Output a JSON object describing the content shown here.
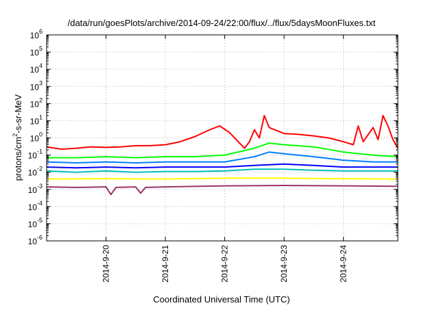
{
  "chart_data": {
    "type": "line",
    "title": "/data/run/goesPlots/archive/2014-09-24/22:00/flux/../flux/5daysMoonFluxes.txt",
    "xlabel": "Coordinated Universal Time (UTC)",
    "ylabel": {
      "prefix": "protons/cm",
      "superscript": "2",
      "suffix": "-s-sr-MeV"
    },
    "y_scale": "log",
    "ylim": [
      1e-06,
      1000000
    ],
    "yticks": [
      {
        "base": "10",
        "exp": "-6"
      },
      {
        "base": "10",
        "exp": "-5"
      },
      {
        "base": "10",
        "exp": "-4"
      },
      {
        "base": "10",
        "exp": "-3"
      },
      {
        "base": "10",
        "exp": "-2"
      },
      {
        "base": "10",
        "exp": "-1"
      },
      {
        "base": "10",
        "exp": "0"
      },
      {
        "base": "10",
        "exp": "1"
      },
      {
        "base": "10",
        "exp": "2"
      },
      {
        "base": "10",
        "exp": "3"
      },
      {
        "base": "10",
        "exp": "4"
      },
      {
        "base": "10",
        "exp": "5"
      },
      {
        "base": "10",
        "exp": "6"
      }
    ],
    "xlim": [
      "2014-09-19 00:00",
      "2014-09-24 22:00"
    ],
    "xticks": [
      "2014-9-20",
      "2014-9-21",
      "2014-9-22",
      "2014-9-23",
      "2014-9-24"
    ],
    "grid": true,
    "series": [
      {
        "color": "#ff0000",
        "points": [
          [
            "2014-09-19 00:00",
            0.3
          ],
          [
            "2014-09-19 06:00",
            0.22
          ],
          [
            "2014-09-19 12:00",
            0.25
          ],
          [
            "2014-09-19 18:00",
            0.3
          ],
          [
            "2014-09-20 00:00",
            0.28
          ],
          [
            "2014-09-20 06:00",
            0.3
          ],
          [
            "2014-09-20 12:00",
            0.35
          ],
          [
            "2014-09-20 18:00",
            0.35
          ],
          [
            "2014-09-21 00:00",
            0.4
          ],
          [
            "2014-09-21 06:00",
            0.6
          ],
          [
            "2014-09-21 12:00",
            1.2
          ],
          [
            "2014-09-21 18:00",
            3.0
          ],
          [
            "2014-09-21 22:00",
            5.0
          ],
          [
            "2014-09-22 02:00",
            2.0
          ],
          [
            "2014-09-22 06:00",
            0.5
          ],
          [
            "2014-09-22 08:00",
            0.25
          ],
          [
            "2014-09-22 10:00",
            0.6
          ],
          [
            "2014-09-22 12:00",
            3.0
          ],
          [
            "2014-09-22 14:00",
            1.0
          ],
          [
            "2014-09-22 16:00",
            20.0
          ],
          [
            "2014-09-22 18:00",
            4.0
          ],
          [
            "2014-09-23 00:00",
            1.8
          ],
          [
            "2014-09-23 06:00",
            1.6
          ],
          [
            "2014-09-23 12:00",
            1.3
          ],
          [
            "2014-09-23 18:00",
            1.0
          ],
          [
            "2014-09-24 00:00",
            0.6
          ],
          [
            "2014-09-24 04:00",
            0.4
          ],
          [
            "2014-09-24 06:00",
            5.0
          ],
          [
            "2014-09-24 08:00",
            0.6
          ],
          [
            "2014-09-24 12:00",
            4.0
          ],
          [
            "2014-09-24 14:00",
            0.8
          ],
          [
            "2014-09-24 16:00",
            20.0
          ],
          [
            "2014-09-24 18:00",
            5.0
          ],
          [
            "2014-09-24 20:00",
            0.8
          ],
          [
            "2014-09-24 22:00",
            0.25
          ]
        ]
      },
      {
        "color": "#00ff00",
        "points": [
          [
            "2014-09-19 00:00",
            0.07
          ],
          [
            "2014-09-19 12:00",
            0.07
          ],
          [
            "2014-09-20 00:00",
            0.08
          ],
          [
            "2014-09-20 12:00",
            0.07
          ],
          [
            "2014-09-21 00:00",
            0.08
          ],
          [
            "2014-09-21 12:00",
            0.08
          ],
          [
            "2014-09-22 00:00",
            0.1
          ],
          [
            "2014-09-22 12:00",
            0.25
          ],
          [
            "2014-09-22 18:00",
            0.5
          ],
          [
            "2014-09-23 00:00",
            0.4
          ],
          [
            "2014-09-23 12:00",
            0.3
          ],
          [
            "2014-09-24 00:00",
            0.15
          ],
          [
            "2014-09-24 12:00",
            0.1
          ],
          [
            "2014-09-24 22:00",
            0.08
          ]
        ]
      },
      {
        "color": "#0080ff",
        "points": [
          [
            "2014-09-19 00:00",
            0.04
          ],
          [
            "2014-09-19 12:00",
            0.035
          ],
          [
            "2014-09-20 00:00",
            0.04
          ],
          [
            "2014-09-20 12:00",
            0.035
          ],
          [
            "2014-09-21 00:00",
            0.04
          ],
          [
            "2014-09-21 12:00",
            0.04
          ],
          [
            "2014-09-22 00:00",
            0.04
          ],
          [
            "2014-09-22 12:00",
            0.08
          ],
          [
            "2014-09-22 18:00",
            0.15
          ],
          [
            "2014-09-23 00:00",
            0.12
          ],
          [
            "2014-09-23 12:00",
            0.08
          ],
          [
            "2014-09-24 00:00",
            0.05
          ],
          [
            "2014-09-24 12:00",
            0.04
          ],
          [
            "2014-09-24 22:00",
            0.04
          ]
        ]
      },
      {
        "color": "#0000ff",
        "points": [
          [
            "2014-09-19 00:00",
            0.02
          ],
          [
            "2014-09-19 12:00",
            0.018
          ],
          [
            "2014-09-20 00:00",
            0.02
          ],
          [
            "2014-09-20 12:00",
            0.018
          ],
          [
            "2014-09-21 00:00",
            0.02
          ],
          [
            "2014-09-21 12:00",
            0.02
          ],
          [
            "2014-09-22 00:00",
            0.02
          ],
          [
            "2014-09-22 12:00",
            0.025
          ],
          [
            "2014-09-23 00:00",
            0.03
          ],
          [
            "2014-09-23 12:00",
            0.025
          ],
          [
            "2014-09-24 00:00",
            0.02
          ],
          [
            "2014-09-24 12:00",
            0.02
          ],
          [
            "2014-09-24 22:00",
            0.02
          ]
        ]
      },
      {
        "color": "#00c0c0",
        "points": [
          [
            "2014-09-19 00:00",
            0.012
          ],
          [
            "2014-09-19 12:00",
            0.01
          ],
          [
            "2014-09-20 00:00",
            0.012
          ],
          [
            "2014-09-20 12:00",
            0.01
          ],
          [
            "2014-09-21 00:00",
            0.011
          ],
          [
            "2014-09-21 12:00",
            0.011
          ],
          [
            "2014-09-22 00:00",
            0.012
          ],
          [
            "2014-09-22 12:00",
            0.015
          ],
          [
            "2014-09-23 00:00",
            0.015
          ],
          [
            "2014-09-23 12:00",
            0.013
          ],
          [
            "2014-09-24 00:00",
            0.012
          ],
          [
            "2014-09-24 12:00",
            0.012
          ],
          [
            "2014-09-24 22:00",
            0.012
          ]
        ]
      },
      {
        "color": "#ffff00",
        "points": [
          [
            "2014-09-19 00:00",
            0.004
          ],
          [
            "2014-09-20 00:00",
            0.0042
          ],
          [
            "2014-09-21 00:00",
            0.004
          ],
          [
            "2014-09-22 00:00",
            0.0045
          ],
          [
            "2014-09-23 00:00",
            0.0045
          ],
          [
            "2014-09-24 00:00",
            0.0042
          ],
          [
            "2014-09-24 22:00",
            0.004
          ]
        ]
      },
      {
        "color": "#993366",
        "points": [
          [
            "2014-09-19 00:00",
            0.0014
          ],
          [
            "2014-09-19 12:00",
            0.0013
          ],
          [
            "2014-09-20 00:00",
            0.0014
          ],
          [
            "2014-09-20 02:00",
            0.0005
          ],
          [
            "2014-09-20 04:00",
            0.0013
          ],
          [
            "2014-09-20 12:00",
            0.0014
          ],
          [
            "2014-09-20 14:00",
            0.0006
          ],
          [
            "2014-09-20 16:00",
            0.0013
          ],
          [
            "2014-09-21 00:00",
            0.0014
          ],
          [
            "2014-09-22 00:00",
            0.0016
          ],
          [
            "2014-09-23 00:00",
            0.0017
          ],
          [
            "2014-09-24 00:00",
            0.0016
          ],
          [
            "2014-09-24 22:00",
            0.0015
          ]
        ]
      }
    ]
  }
}
